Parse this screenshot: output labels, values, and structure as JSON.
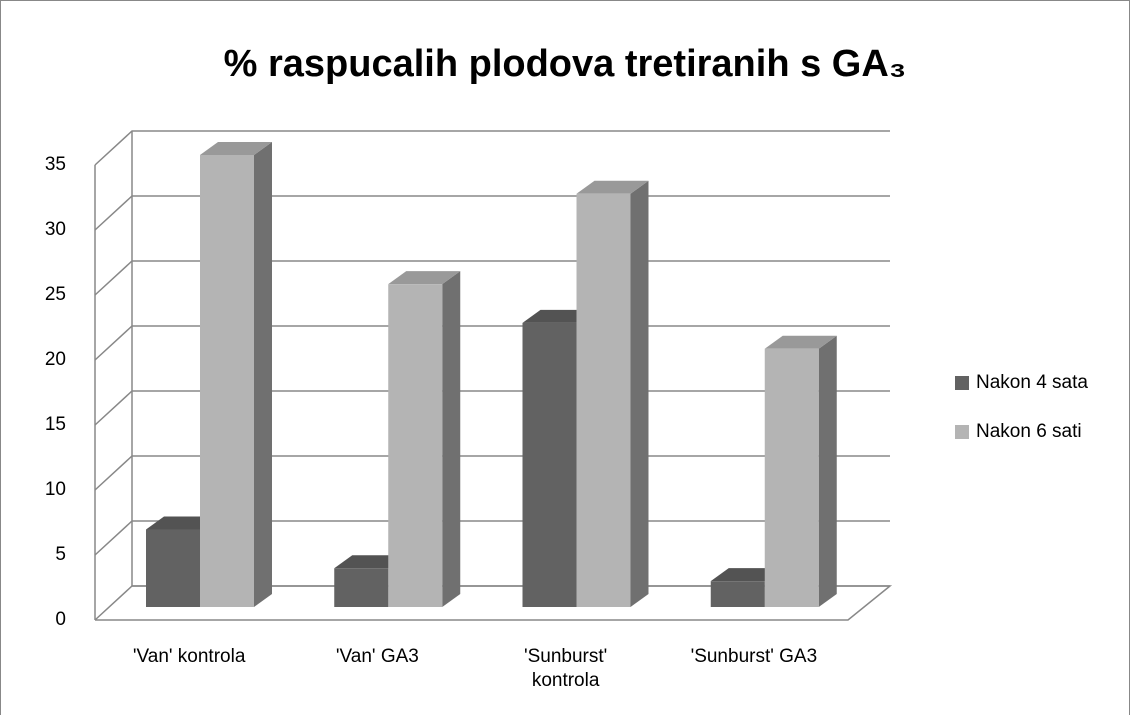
{
  "chart_data": {
    "type": "bar3d",
    "title": "% raspucalih plodova tretiranih s GA₃",
    "categories": [
      "'Van' kontrola",
      "'Van' GA3",
      "'Sunburst' kontrola",
      "'Sunburst' GA3"
    ],
    "series": [
      {
        "name": "Nakon 4 sata",
        "color": "#626262",
        "values": [
          6,
          3,
          22,
          2
        ]
      },
      {
        "name": "Nakon 6 sati",
        "color": "#b4b4b4",
        "values": [
          35,
          25,
          32,
          20
        ]
      }
    ],
    "ylim": [
      0,
      35
    ],
    "yticks": [
      0,
      5,
      10,
      15,
      20,
      25,
      30,
      35
    ],
    "grid": true,
    "legend": "right"
  }
}
